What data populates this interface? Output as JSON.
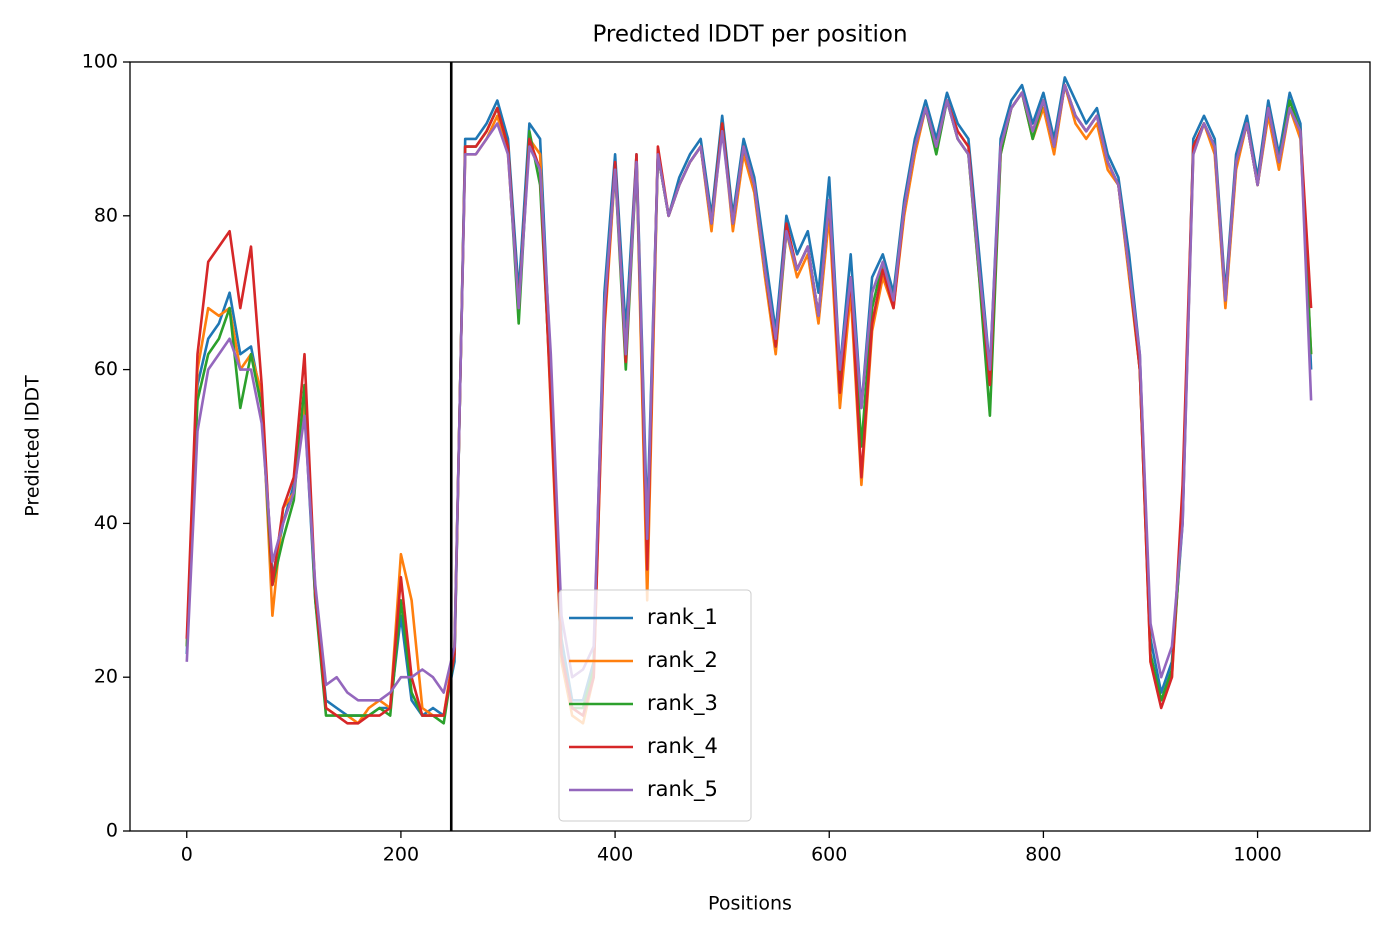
{
  "chart_data": {
    "type": "line",
    "title": "Predicted lDDT per position",
    "xlabel": "Positions",
    "ylabel": "Predicted lDDT",
    "x": [
      0,
      10,
      20,
      30,
      40,
      50,
      60,
      70,
      80,
      90,
      100,
      110,
      120,
      130,
      140,
      150,
      160,
      170,
      180,
      190,
      200,
      210,
      220,
      230,
      240,
      250,
      260,
      270,
      280,
      290,
      300,
      310,
      320,
      330,
      340,
      350,
      360,
      370,
      380,
      390,
      400,
      410,
      420,
      430,
      440,
      450,
      460,
      470,
      480,
      490,
      500,
      510,
      520,
      530,
      540,
      550,
      560,
      570,
      580,
      590,
      600,
      610,
      620,
      630,
      640,
      650,
      660,
      670,
      680,
      690,
      700,
      710,
      720,
      730,
      740,
      750,
      760,
      770,
      780,
      790,
      800,
      810,
      820,
      830,
      840,
      850,
      860,
      870,
      880,
      890,
      900,
      910,
      920,
      930,
      940,
      950,
      960,
      970,
      980,
      990,
      1000,
      1010,
      1020,
      1030,
      1040,
      1050
    ],
    "series": [
      {
        "name": "rank_1",
        "color": "#1f77b4",
        "values": [
          23,
          58,
          64,
          66,
          70,
          62,
          63,
          56,
          33,
          40,
          45,
          55,
          30,
          17,
          16,
          15,
          15,
          15,
          16,
          16,
          28,
          17,
          15,
          16,
          15,
          22,
          90,
          90,
          92,
          95,
          90,
          70,
          92,
          90,
          60,
          25,
          17,
          17,
          22,
          70,
          88,
          65,
          88,
          40,
          88,
          80,
          85,
          88,
          90,
          80,
          93,
          80,
          90,
          85,
          75,
          65,
          80,
          75,
          78,
          70,
          85,
          60,
          75,
          55,
          72,
          75,
          70,
          82,
          90,
          95,
          90,
          96,
          92,
          90,
          75,
          60,
          90,
          95,
          97,
          92,
          96,
          90,
          98,
          95,
          92,
          94,
          88,
          85,
          75,
          62,
          25,
          18,
          22,
          40,
          90,
          93,
          90,
          70,
          88,
          93,
          85,
          95,
          88,
          96,
          92,
          60
        ]
      },
      {
        "name": "rank_2",
        "color": "#ff7f0e",
        "values": [
          24,
          60,
          68,
          67,
          68,
          60,
          62,
          57,
          28,
          42,
          44,
          56,
          31,
          16,
          15,
          15,
          14,
          16,
          17,
          16,
          36,
          30,
          16,
          15,
          15,
          24,
          88,
          88,
          90,
          93,
          88,
          68,
          90,
          88,
          55,
          22,
          15,
          14,
          20,
          65,
          86,
          62,
          87,
          30,
          88,
          80,
          84,
          87,
          89,
          78,
          92,
          78,
          88,
          83,
          72,
          62,
          78,
          72,
          75,
          66,
          80,
          55,
          70,
          45,
          65,
          72,
          68,
          80,
          88,
          94,
          89,
          95,
          90,
          88,
          72,
          58,
          88,
          94,
          96,
          90,
          94,
          88,
          97,
          92,
          90,
          92,
          86,
          84,
          72,
          60,
          22,
          17,
          20,
          42,
          88,
          92,
          88,
          68,
          86,
          92,
          84,
          93,
          86,
          94,
          90,
          62
        ]
      },
      {
        "name": "rank_3",
        "color": "#2ca02c",
        "values": [
          24,
          56,
          62,
          64,
          68,
          55,
          62,
          55,
          32,
          38,
          43,
          58,
          30,
          15,
          15,
          15,
          15,
          15,
          16,
          15,
          30,
          18,
          15,
          15,
          14,
          23,
          89,
          89,
          91,
          94,
          89,
          66,
          91,
          84,
          57,
          23,
          16,
          16,
          21,
          68,
          86,
          60,
          87,
          36,
          88,
          80,
          84,
          87,
          89,
          79,
          92,
          79,
          89,
          84,
          73,
          63,
          78,
          73,
          76,
          67,
          82,
          58,
          72,
          50,
          68,
          74,
          69,
          81,
          89,
          94,
          88,
          95,
          90,
          88,
          72,
          54,
          88,
          94,
          96,
          90,
          95,
          89,
          97,
          93,
          91,
          93,
          87,
          84,
          73,
          60,
          23,
          17,
          21,
          41,
          89,
          92,
          89,
          69,
          87,
          92,
          84,
          94,
          87,
          95,
          91,
          62
        ]
      },
      {
        "name": "rank_4",
        "color": "#d62728",
        "values": [
          25,
          62,
          74,
          76,
          78,
          68,
          76,
          58,
          32,
          42,
          46,
          62,
          31,
          16,
          15,
          14,
          14,
          15,
          15,
          16,
          33,
          20,
          15,
          15,
          15,
          23,
          89,
          89,
          91,
          94,
          89,
          68,
          90,
          86,
          56,
          23,
          16,
          15,
          20,
          66,
          87,
          61,
          88,
          34,
          89,
          80,
          84,
          87,
          89,
          79,
          92,
          79,
          89,
          84,
          73,
          63,
          79,
          73,
          76,
          67,
          82,
          57,
          72,
          46,
          66,
          73,
          68,
          81,
          89,
          94,
          89,
          95,
          91,
          89,
          73,
          58,
          89,
          94,
          96,
          91,
          95,
          89,
          97,
          93,
          91,
          93,
          87,
          84,
          73,
          60,
          22,
          16,
          20,
          45,
          89,
          92,
          89,
          69,
          87,
          92,
          84,
          94,
          87,
          94,
          91,
          68
        ]
      },
      {
        "name": "rank_5",
        "color": "#9467bd",
        "values": [
          22,
          52,
          60,
          62,
          64,
          60,
          60,
          53,
          35,
          40,
          44,
          54,
          32,
          19,
          20,
          18,
          17,
          17,
          17,
          18,
          20,
          20,
          21,
          20,
          18,
          24,
          88,
          88,
          90,
          92,
          88,
          68,
          89,
          86,
          62,
          28,
          20,
          21,
          24,
          68,
          86,
          62,
          87,
          38,
          88,
          80,
          84,
          87,
          89,
          79,
          91,
          79,
          89,
          84,
          73,
          64,
          78,
          73,
          76,
          67,
          82,
          60,
          72,
          55,
          70,
          74,
          69,
          81,
          89,
          94,
          89,
          95,
          90,
          88,
          73,
          60,
          89,
          94,
          96,
          91,
          95,
          89,
          97,
          93,
          91,
          93,
          87,
          84,
          73,
          62,
          27,
          20,
          24,
          40,
          88,
          92,
          89,
          69,
          87,
          92,
          84,
          94,
          87,
          94,
          91,
          56
        ]
      }
    ],
    "vline": 247,
    "vline_color": "#000000",
    "xlim": [
      -53,
      1105
    ],
    "xticks": [
      0,
      200,
      400,
      600,
      800,
      1000
    ],
    "ylim": [
      0,
      100
    ],
    "yticks": [
      0,
      20,
      40,
      60,
      80,
      100
    ],
    "legend": "lower center"
  }
}
